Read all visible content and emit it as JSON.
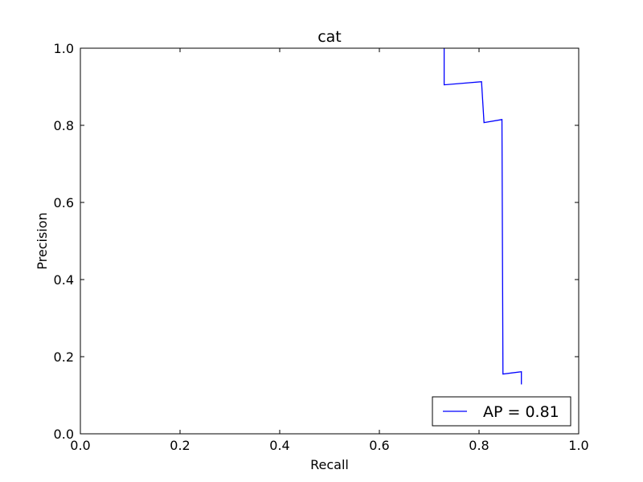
{
  "chart_data": {
    "type": "line",
    "title": "cat",
    "xlabel": "Recall",
    "ylabel": "Precision",
    "xlim": [
      0.0,
      1.0
    ],
    "ylim": [
      0.0,
      1.0
    ],
    "xticks": [
      "0.0",
      "0.2",
      "0.4",
      "0.6",
      "0.8",
      "1.0"
    ],
    "yticks": [
      "0.0",
      "0.2",
      "0.4",
      "0.6",
      "0.8",
      "1.0"
    ],
    "grid": false,
    "legend_position": "lower-right",
    "series": [
      {
        "name": "AP = 0.81",
        "color": "#0000ff",
        "x": [
          0.73,
          0.73,
          0.805,
          0.81,
          0.846,
          0.848,
          0.885,
          0.885
        ],
        "y": [
          1.0,
          0.905,
          0.913,
          0.807,
          0.815,
          0.155,
          0.161,
          0.128
        ]
      }
    ]
  }
}
